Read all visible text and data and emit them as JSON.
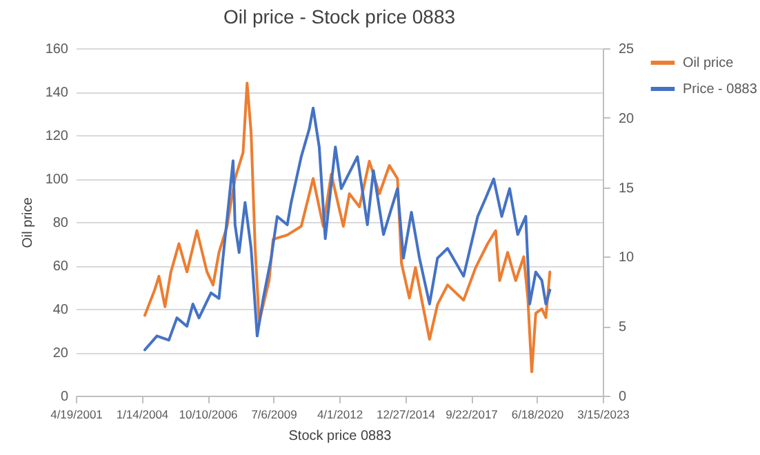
{
  "chart_data": {
    "type": "line",
    "title": "Oil price - Stock price 0883",
    "xlabel": "Stock price 0883",
    "ylabel": "Oil price",
    "xlim": [
      "2001-04-19",
      "2023-03-15"
    ],
    "xticks": [
      {
        "value": "2001-04-19",
        "label": "4/19/2001"
      },
      {
        "value": "2004-01-14",
        "label": "1/14/2004"
      },
      {
        "value": "2006-10-10",
        "label": "10/10/2006"
      },
      {
        "value": "2009-07-06",
        "label": "7/6/2009"
      },
      {
        "value": "2012-04-01",
        "label": "4/1/2012"
      },
      {
        "value": "2014-12-27",
        "label": "12/27/2014"
      },
      {
        "value": "2017-09-22",
        "label": "9/22/2017"
      },
      {
        "value": "2020-06-18",
        "label": "6/18/2020"
      },
      {
        "value": "2023-03-15",
        "label": "3/15/2023"
      }
    ],
    "ylim": [
      0,
      160
    ],
    "yticks": [
      0,
      20,
      40,
      60,
      80,
      100,
      120,
      140,
      160
    ],
    "y2lim": [
      0,
      25
    ],
    "y2ticks": [
      0,
      5,
      10,
      15,
      20,
      25
    ],
    "grid": "y",
    "legend": "right",
    "series": [
      {
        "name": "Oil price",
        "color": "#ed7d31",
        "x": [
          "2004-03",
          "2004-08",
          "2004-10",
          "2005-01",
          "2005-04",
          "2005-08",
          "2005-12",
          "2006-05",
          "2006-10",
          "2007-01",
          "2007-04",
          "2007-08",
          "2007-12",
          "2008-04",
          "2008-06",
          "2008-08",
          "2008-10",
          "2008-12",
          "2009-05",
          "2009-07",
          "2010-02",
          "2010-09",
          "2011-03",
          "2011-08",
          "2011-12",
          "2012-06",
          "2012-09",
          "2013-02",
          "2013-07",
          "2013-12",
          "2014-05",
          "2014-09",
          "2014-11",
          "2015-03",
          "2015-06",
          "2015-10",
          "2016-01",
          "2016-05",
          "2016-10",
          "2017-06",
          "2017-12",
          "2018-06",
          "2018-10",
          "2018-12",
          "2019-04",
          "2019-08",
          "2019-12",
          "2020-02",
          "2020-04",
          "2020-06",
          "2020-09",
          "2020-11",
          "2021-01"
        ],
        "values": [
          37,
          49,
          55,
          41,
          57,
          70,
          57,
          76,
          57,
          51,
          66,
          78,
          100,
          112,
          144,
          121,
          68,
          34,
          53,
          72,
          74,
          78,
          100,
          78,
          102,
          78,
          93,
          87,
          108,
          93,
          106,
          100,
          61,
          45,
          59,
          40,
          26,
          42,
          51,
          44,
          59,
          70,
          76,
          53,
          66,
          53,
          64,
          45,
          11,
          38,
          40,
          36,
          57
        ]
      },
      {
        "name": "Price - 0883",
        "color": "#4472c4",
        "axis": "y2",
        "x": [
          "2004-03",
          "2004-09",
          "2005-03",
          "2005-07",
          "2005-12",
          "2006-03",
          "2006-06",
          "2006-12",
          "2007-04",
          "2007-06",
          "2007-11",
          "2007-12",
          "2008-02",
          "2008-05",
          "2008-08",
          "2008-11",
          "2009-02",
          "2009-06",
          "2009-09",
          "2010-02",
          "2010-04",
          "2010-09",
          "2011-01",
          "2011-03",
          "2011-06",
          "2011-09",
          "2012-02",
          "2012-05",
          "2013-01",
          "2013-06",
          "2013-09",
          "2014-02",
          "2014-09",
          "2014-12",
          "2015-04",
          "2015-08",
          "2016-01",
          "2016-05",
          "2016-10",
          "2017-06",
          "2018-01",
          "2018-05",
          "2018-09",
          "2019-01",
          "2019-05",
          "2019-09",
          "2020-01",
          "2020-03",
          "2020-06",
          "2020-09",
          "2020-11",
          "2021-01"
        ],
        "values": [
          3.3,
          4.3,
          4.0,
          5.6,
          5.0,
          6.6,
          5.6,
          7.4,
          7.0,
          9.9,
          16.9,
          12.3,
          10.3,
          13.9,
          10.6,
          4.3,
          7.0,
          9.9,
          12.9,
          12.3,
          13.9,
          17.2,
          19.2,
          20.7,
          17.9,
          11.3,
          17.9,
          14.9,
          17.2,
          12.3,
          16.2,
          11.6,
          14.9,
          9.9,
          13.2,
          9.9,
          6.6,
          9.9,
          10.6,
          8.6,
          12.9,
          14.2,
          15.6,
          12.9,
          14.9,
          11.6,
          12.9,
          6.6,
          8.9,
          8.3,
          6.6,
          7.6
        ]
      }
    ]
  }
}
